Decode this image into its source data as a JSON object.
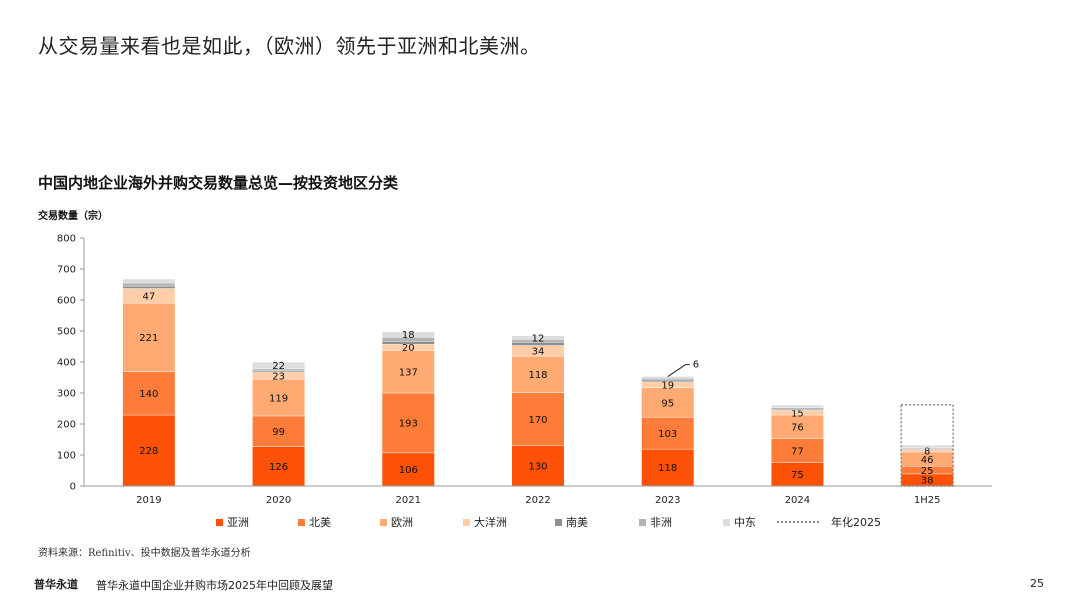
{
  "headline": "从交易量来看也是如此，（欧洲）领先于亚洲和北美洲。",
  "footer": {
    "brand": "普华永道",
    "report": "普华永道中国企业并购市场2025年中回顾及展望",
    "page": "25"
  },
  "source": "资料来源：Refinitiv、投中数据及普华永道分析",
  "chart_data": {
    "type": "bar",
    "stacked": true,
    "title": "中国内地企业海外并购交易数量总览—按投资地区分类",
    "ylabel": "交易数量（宗）",
    "xlabel": "",
    "ylim": [
      0,
      800
    ],
    "yticks": [
      "0",
      "100",
      "200",
      "300",
      "400",
      "500",
      "600",
      "700",
      "800"
    ],
    "categories": [
      "2019",
      "2020",
      "2021",
      "2022",
      "2023",
      "2024",
      "1H25"
    ],
    "series": [
      {
        "name": "亚洲",
        "color": "#fd5108",
        "values": [
          228,
          126,
          106,
          130,
          118,
          75,
          38
        ]
      },
      {
        "name": "北美",
        "color": "#fe7c39",
        "values": [
          140,
          99,
          193,
          170,
          103,
          77,
          25
        ]
      },
      {
        "name": "欧洲",
        "color": "#ffaa72",
        "values": [
          221,
          119,
          137,
          118,
          95,
          76,
          46
        ]
      },
      {
        "name": "大洋洲",
        "color": "#ffcda8",
        "values": [
          47,
          23,
          20,
          34,
          19,
          15,
          8
        ]
      },
      {
        "name": "南美",
        "color": "#8f8f8f",
        "values": [
          8,
          5,
          10,
          11,
          6,
          4,
          3
        ]
      },
      {
        "name": "非洲",
        "color": "#b4b4b4",
        "values": [
          10,
          5,
          13,
          9,
          6,
          5,
          3
        ]
      },
      {
        "name": "中东",
        "color": "#dddddd",
        "values": [
          13,
          22,
          18,
          12,
          6,
          8,
          8
        ]
      }
    ],
    "data_labels": [
      [
        "228",
        "140",
        "221",
        "47",
        "",
        "",
        ""
      ],
      [
        "126",
        "99",
        "119",
        "23",
        "",
        "",
        "22"
      ],
      [
        "106",
        "193",
        "137",
        "20",
        "",
        "",
        "18"
      ],
      [
        "130",
        "170",
        "118",
        "34",
        "",
        "",
        "12"
      ],
      [
        "118",
        "103",
        "95",
        "19",
        "",
        "",
        "6"
      ],
      [
        "75",
        "77",
        "76",
        "15",
        "",
        "",
        ""
      ],
      [
        "38",
        "25",
        "46",
        "8",
        "",
        "",
        ""
      ]
    ],
    "annualized": {
      "name": "年化2025",
      "category": "1H25",
      "value": 262
    },
    "legend_position": "bottom"
  }
}
